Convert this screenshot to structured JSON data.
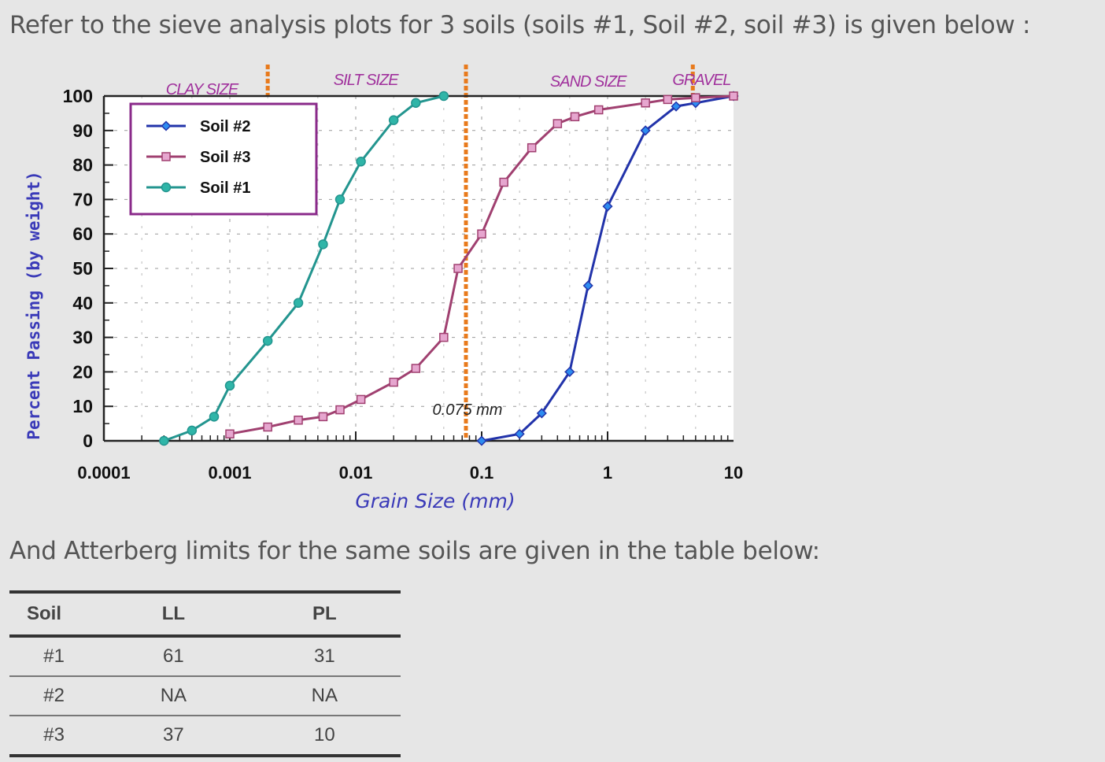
{
  "intro_text": "Refer to the sieve analysis plots for 3 soils (soils #1, Soil #2, soil #3) is given below :",
  "outro_text": "And Atterberg limits for the same soils are given in the table below:",
  "chart_data": {
    "type": "line",
    "xlabel": "Grain Size (mm)",
    "ylabel": "Percent Passing (by weight)",
    "x_scale": "log",
    "xlim": [
      0.0001,
      10
    ],
    "ylim": [
      0,
      100
    ],
    "grid": true,
    "legend_position": "top-left",
    "x_ticks": [
      {
        "value": 0.0001,
        "label": "0.0001"
      },
      {
        "value": 0.001,
        "label": "0.001"
      },
      {
        "value": 0.01,
        "label": "0.01"
      },
      {
        "value": 0.1,
        "label": "0.1"
      },
      {
        "value": 1,
        "label": "1"
      },
      {
        "value": 10,
        "label": "10"
      }
    ],
    "y_ticks": [
      0,
      10,
      20,
      30,
      40,
      50,
      60,
      70,
      80,
      90,
      100
    ],
    "size_zones": [
      {
        "label": "CLAY SIZE",
        "boundary": 0.002
      },
      {
        "label": "SILT SIZE",
        "boundary": 0.075
      },
      {
        "label": "SAND SIZE",
        "boundary": 4.75
      },
      {
        "label": "GRAVEL"
      }
    ],
    "annotation": {
      "text": "0.075 mm",
      "x": 0.075
    },
    "series": [
      {
        "name": "Soil #2",
        "color": "#2233aa",
        "fill": "#2d8cf0",
        "marker": "diamond",
        "points": [
          [
            0.1,
            0
          ],
          [
            0.2,
            2
          ],
          [
            0.3,
            8
          ],
          [
            0.5,
            20
          ],
          [
            0.7,
            45
          ],
          [
            1,
            68
          ],
          [
            2,
            90
          ],
          [
            3.5,
            97
          ],
          [
            5,
            98
          ],
          [
            10,
            100
          ]
        ]
      },
      {
        "name": "Soil #3",
        "color": "#a04070",
        "fill": "#e6a6cf",
        "marker": "square",
        "points": [
          [
            0.001,
            2
          ],
          [
            0.002,
            4
          ],
          [
            0.0035,
            6
          ],
          [
            0.0055,
            7
          ],
          [
            0.0075,
            9
          ],
          [
            0.011,
            12
          ],
          [
            0.02,
            17
          ],
          [
            0.03,
            21
          ],
          [
            0.05,
            30
          ],
          [
            0.065,
            50
          ],
          [
            0.1,
            60
          ],
          [
            0.15,
            75
          ],
          [
            0.25,
            85
          ],
          [
            0.4,
            92
          ],
          [
            0.55,
            94
          ],
          [
            0.85,
            96
          ],
          [
            2,
            98
          ],
          [
            3,
            99
          ],
          [
            5,
            99.5
          ],
          [
            10,
            100
          ]
        ]
      },
      {
        "name": "Soil #1",
        "color": "#23958f",
        "fill": "#2fb5a8",
        "marker": "circle",
        "points": [
          [
            0.0003,
            0
          ],
          [
            0.0005,
            3
          ],
          [
            0.00075,
            7
          ],
          [
            0.001,
            16
          ],
          [
            0.002,
            29
          ],
          [
            0.0035,
            40
          ],
          [
            0.0055,
            57
          ],
          [
            0.0075,
            70
          ],
          [
            0.011,
            81
          ],
          [
            0.02,
            93
          ],
          [
            0.03,
            98
          ],
          [
            0.05,
            100
          ]
        ]
      }
    ]
  },
  "atterberg_table": {
    "headers": [
      "Soil",
      "LL",
      "PL"
    ],
    "rows": [
      [
        "#1",
        "61",
        "31"
      ],
      [
        "#2",
        "NA",
        "NA"
      ],
      [
        "#3",
        "37",
        "10"
      ]
    ]
  }
}
